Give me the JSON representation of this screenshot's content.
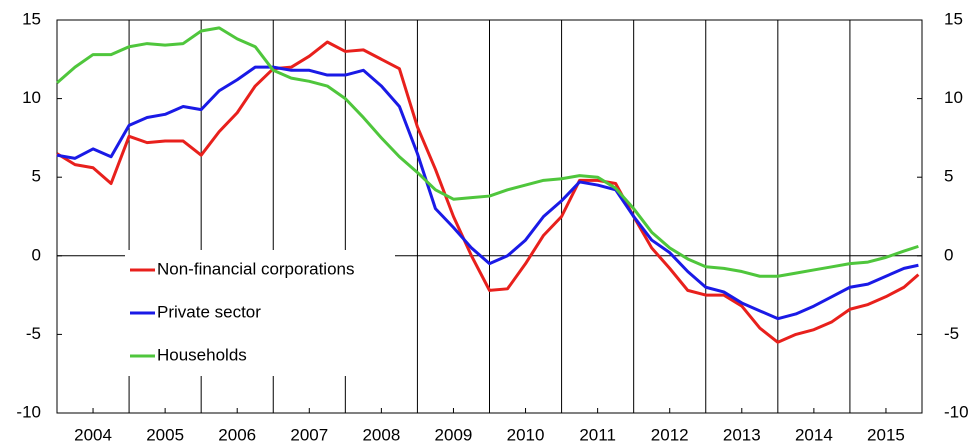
{
  "chart_data": {
    "type": "line",
    "x": [
      2004,
      2004.25,
      2004.5,
      2004.75,
      2005,
      2005.25,
      2005.5,
      2005.75,
      2006,
      2006.25,
      2006.5,
      2006.75,
      2007,
      2007.25,
      2007.5,
      2007.75,
      2008,
      2008.25,
      2008.5,
      2008.75,
      2009,
      2009.25,
      2009.5,
      2009.75,
      2010,
      2010.25,
      2010.5,
      2010.75,
      2011,
      2011.25,
      2011.5,
      2011.75,
      2012,
      2012.25,
      2012.5,
      2012.75,
      2013,
      2013.25,
      2013.5,
      2013.75,
      2014,
      2014.25,
      2014.5,
      2014.75,
      2015,
      2015.25,
      2015.5,
      2015.75,
      2015.95
    ],
    "series": [
      {
        "name": "Non-financial corporations",
        "color": "#e8201c",
        "values": [
          6.5,
          5.8,
          5.6,
          4.6,
          7.6,
          7.2,
          7.3,
          7.3,
          6.4,
          7.9,
          9.1,
          10.8,
          11.9,
          12.0,
          12.7,
          13.6,
          13.0,
          13.1,
          12.5,
          11.9,
          8.2,
          5.5,
          2.5,
          0.0,
          -2.2,
          -2.1,
          -0.5,
          1.3,
          2.5,
          4.8,
          4.8,
          4.6,
          2.5,
          0.5,
          -0.8,
          -2.2,
          -2.5,
          -2.5,
          -3.2,
          -4.6,
          -5.5,
          -5.0,
          -4.7,
          -4.2,
          -3.4,
          -3.1,
          -2.6,
          -2.0,
          -1.2
        ]
      },
      {
        "name": "Private sector",
        "color": "#1a1ae6",
        "values": [
          6.4,
          6.2,
          6.8,
          6.3,
          8.3,
          8.8,
          9.0,
          9.5,
          9.3,
          10.5,
          11.2,
          12.0,
          12.0,
          11.8,
          11.8,
          11.5,
          11.5,
          11.8,
          10.8,
          9.5,
          6.5,
          3.0,
          1.8,
          0.5,
          -0.5,
          0.0,
          1.0,
          2.5,
          3.5,
          4.7,
          4.5,
          4.2,
          2.5,
          1.0,
          0.2,
          -1.0,
          -2.0,
          -2.3,
          -3.0,
          -3.5,
          -4.0,
          -3.7,
          -3.2,
          -2.6,
          -2.0,
          -1.8,
          -1.3,
          -0.8,
          -0.6
        ]
      },
      {
        "name": "Households",
        "color": "#4fc63c",
        "values": [
          11.0,
          12.0,
          12.8,
          12.8,
          13.3,
          13.5,
          13.4,
          13.5,
          14.3,
          14.5,
          13.8,
          13.3,
          11.8,
          11.3,
          11.1,
          10.8,
          10.0,
          8.8,
          7.5,
          6.3,
          5.3,
          4.2,
          3.6,
          3.7,
          3.8,
          4.2,
          4.5,
          4.8,
          4.9,
          5.1,
          5.0,
          4.3,
          3.0,
          1.5,
          0.5,
          -0.2,
          -0.7,
          -0.8,
          -1.0,
          -1.3,
          -1.3,
          -1.1,
          -0.9,
          -0.7,
          -0.5,
          -0.4,
          -0.1,
          0.3,
          0.6
        ]
      }
    ],
    "xlim": [
      2004,
      2016
    ],
    "xticks": [
      {
        "value": 2004.5,
        "label": "2004"
      },
      {
        "value": 2005.5,
        "label": "2005"
      },
      {
        "value": 2006.5,
        "label": "2006"
      },
      {
        "value": 2007.5,
        "label": "2007"
      },
      {
        "value": 2008.5,
        "label": "2008"
      },
      {
        "value": 2009.5,
        "label": "2009"
      },
      {
        "value": 2010.5,
        "label": "2010"
      },
      {
        "value": 2011.5,
        "label": "2011"
      },
      {
        "value": 2012.5,
        "label": "2012"
      },
      {
        "value": 2013.5,
        "label": "2013"
      },
      {
        "value": 2014.5,
        "label": "2014"
      },
      {
        "value": 2015.5,
        "label": "2015"
      }
    ],
    "xgrid": [
      2005,
      2006,
      2007,
      2008,
      2009,
      2010,
      2011,
      2012,
      2013,
      2014,
      2015
    ],
    "ylim": [
      -10,
      15
    ],
    "yticks": [
      -10,
      -5,
      0,
      5,
      10,
      15
    ],
    "y_right_labels": true,
    "legend": "lower left"
  }
}
